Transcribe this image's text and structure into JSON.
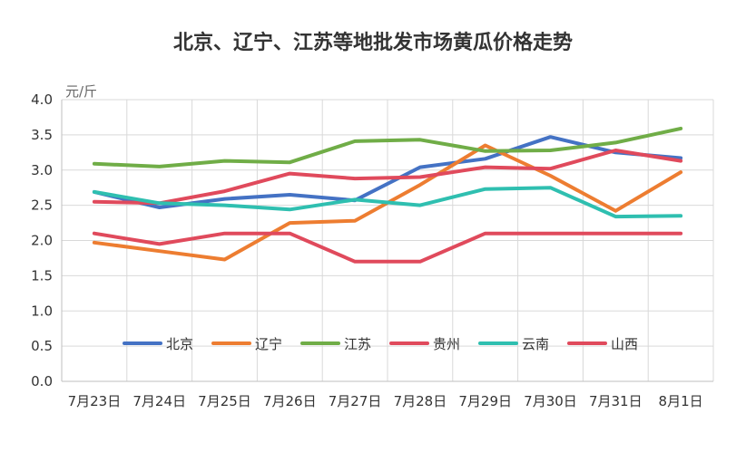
{
  "chart_data": {
    "type": "line",
    "title": "北京、辽宁、江苏等地批发市场黄瓜价格走势",
    "ylabel": "元/斤",
    "xlabel": "",
    "categories": [
      "7月23日",
      "7月24日",
      "7月25日",
      "7月26日",
      "7月27日",
      "7月28日",
      "7月29日",
      "7月30日",
      "7月31日",
      "8月1日"
    ],
    "ylim": [
      0,
      4.0
    ],
    "yticks": [
      "0.0",
      "0.5",
      "1.0",
      "1.5",
      "2.0",
      "2.5",
      "3.0",
      "3.5",
      "4.0"
    ],
    "grid": true,
    "legend_position": "bottom-center",
    "series": [
      {
        "name": "北京",
        "color": "#4472C4",
        "values": [
          2.69,
          2.47,
          2.59,
          2.65,
          2.57,
          3.04,
          3.16,
          3.47,
          3.25,
          3.17
        ]
      },
      {
        "name": "辽宁",
        "color": "#ED7D31",
        "values": [
          1.97,
          null,
          1.73,
          2.25,
          2.28,
          2.79,
          3.35,
          2.92,
          2.42,
          2.97
        ]
      },
      {
        "name": "江苏",
        "color": "#70AD47",
        "values": [
          3.09,
          3.05,
          3.13,
          3.11,
          3.41,
          3.43,
          3.27,
          3.28,
          3.39,
          3.59
        ]
      },
      {
        "name": "贵州",
        "color": "#E04A5C",
        "values": [
          2.55,
          2.53,
          2.7,
          2.95,
          2.88,
          2.9,
          3.04,
          3.02,
          3.28,
          3.13
        ]
      },
      {
        "name": "云南",
        "color": "#2FBFB0",
        "values": [
          2.69,
          2.53,
          2.5,
          2.44,
          2.58,
          2.5,
          2.73,
          2.75,
          2.34,
          2.35
        ]
      },
      {
        "name": "山西",
        "color": "#E04A5C",
        "values": [
          2.1,
          1.95,
          2.1,
          2.1,
          1.7,
          1.7,
          2.1,
          2.1,
          2.1,
          2.1
        ]
      }
    ]
  }
}
